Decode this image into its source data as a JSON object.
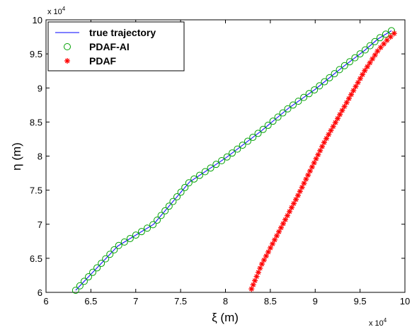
{
  "chart_data": {
    "type": "scatter",
    "title": "",
    "xlabel": "ξ  (m)",
    "ylabel": "η  (m)",
    "x_exponent_label": "x 10",
    "y_exponent_label": "x 10",
    "exponent": "4",
    "xlim": [
      6,
      10
    ],
    "ylim": [
      6,
      10
    ],
    "xticks": [
      "6",
      "6.5",
      "7",
      "7.5",
      "8",
      "8.5",
      "9",
      "9.5",
      "10"
    ],
    "yticks": [
      "6",
      "6.5",
      "7",
      "7.5",
      "8",
      "8.5",
      "9",
      "9.5",
      "10"
    ],
    "grid": false,
    "legend_position": "top-left",
    "colors": {
      "true": "#0000ff",
      "ai": "#00a000",
      "pdaf": "#ff0000"
    },
    "series": [
      {
        "name": "true trajectory",
        "style": "line",
        "x": [
          6.33,
          6.8,
          7.2,
          7.6,
          8.0,
          8.4,
          8.7,
          9.0,
          9.3,
          9.55,
          9.7,
          9.85
        ],
        "y": [
          6.03,
          6.68,
          7.0,
          7.62,
          7.97,
          8.37,
          8.7,
          8.98,
          9.3,
          9.55,
          9.72,
          9.84
        ]
      },
      {
        "name": "PDAF-AI",
        "style": "circle",
        "x": [
          6.33,
          6.8,
          7.2,
          7.6,
          8.0,
          8.4,
          8.7,
          9.0,
          9.3,
          9.55,
          9.7,
          9.85
        ],
        "y": [
          6.03,
          6.68,
          7.0,
          7.62,
          7.97,
          8.37,
          8.7,
          8.98,
          9.3,
          9.55,
          9.72,
          9.84
        ],
        "count": 65
      },
      {
        "name": "PDAF",
        "style": "star",
        "x": [
          8.29,
          8.4,
          8.6,
          8.8,
          8.95,
          9.1,
          9.25,
          9.4,
          9.55,
          9.7,
          9.8,
          9.88
        ],
        "y": [
          6.05,
          6.4,
          6.9,
          7.4,
          7.8,
          8.2,
          8.55,
          8.9,
          9.25,
          9.55,
          9.7,
          9.8
        ],
        "count": 65
      }
    ]
  }
}
